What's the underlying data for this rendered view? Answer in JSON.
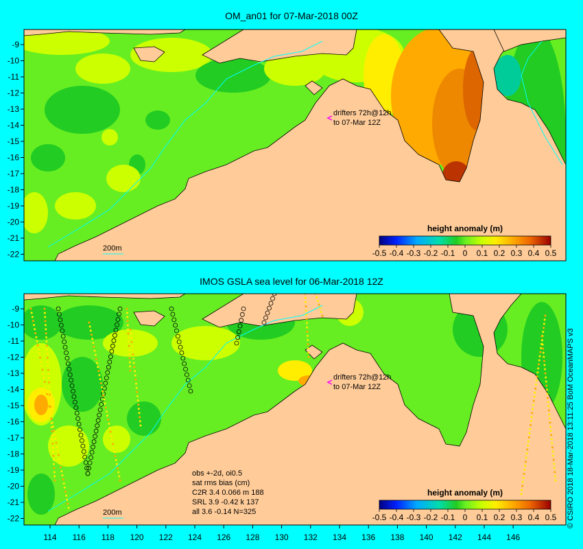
{
  "panels": [
    {
      "title": "OM_an01 for 07-Mar-2018 00Z",
      "drifters_line1": "drifters 72h@12h",
      "drifters_line2": "to 07-Mar 12Z",
      "contour_label": "200m",
      "legend_title": "height anomaly (m)"
    },
    {
      "title": "IMOS GSLA sea level  for 06-Mar-2018 12Z",
      "drifters_line1": "drifters 72h@12h",
      "drifters_line2": "to 07-Mar 12Z",
      "contour_label": "200m",
      "legend_title": "height anomaly (m)",
      "obs_text": {
        "line1": "obs +-2d, oi0.5",
        "line2": "sat rms bias (cm)",
        "line3": "C2R   3.4  0.066 m 188",
        "line4": "SRL    3.9 -0.42 k 137",
        "line5": "all    3.6 -0.14  N=325"
      }
    }
  ],
  "legend_ticks": [
    "-0.5",
    "-0.4",
    "-0.3",
    "-0.2",
    "-0.1",
    "0",
    "0.1",
    "0.2",
    "0.3",
    "0.4",
    "0.5"
  ],
  "lat_ticks": [
    "-9",
    "-10",
    "-11",
    "-12",
    "-13",
    "-14",
    "-15",
    "-16",
    "-17",
    "-18",
    "-19",
    "-20",
    "-21",
    "-22"
  ],
  "lon_ticks": [
    "114",
    "116",
    "118",
    "120",
    "122",
    "124",
    "126",
    "128",
    "130",
    "132",
    "134",
    "136",
    "138",
    "140",
    "142",
    "144",
    "146"
  ],
  "credit": "© CSIRO 2018  18-Mar-2018 13:11:25 BoM OceanMAPS v3",
  "colors": {
    "background": "#00ffff",
    "land": "#ffcc99",
    "ocean_base": "#66ee22",
    "warm_anomaly": "#ee8800",
    "drifter_marker": "#ff00ff"
  }
}
